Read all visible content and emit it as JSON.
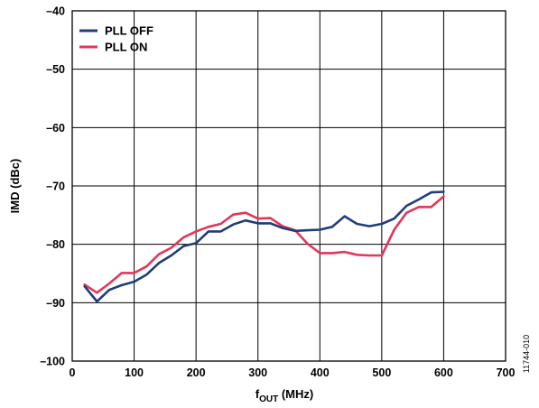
{
  "chart_data": {
    "type": "line",
    "xlabel": {
      "main": "f",
      "sub": "OUT",
      "rest": " (MHz)"
    },
    "ylabel": "IMD (dBc)",
    "xlim": [
      0,
      700
    ],
    "ylim": [
      -100,
      -40
    ],
    "x_ticks": [
      0,
      100,
      200,
      300,
      400,
      500,
      600,
      700
    ],
    "y_ticks": [
      -40,
      -50,
      -60,
      -70,
      -80,
      -90,
      -100
    ],
    "x_tick_labels": [
      "0",
      "100",
      "200",
      "300",
      "400",
      "500",
      "600",
      "700"
    ],
    "y_tick_labels": [
      "–40",
      "–50",
      "–60",
      "–70",
      "–80",
      "–90",
      "–100"
    ],
    "grid": true,
    "legend_position": "top-left",
    "series": [
      {
        "name": "PLL OFF",
        "color": "#1f3d7a",
        "points": [
          [
            20,
            -87.2
          ],
          [
            40,
            -89.8
          ],
          [
            60,
            -87.8
          ],
          [
            80,
            -87.0
          ],
          [
            100,
            -86.4
          ],
          [
            120,
            -85.2
          ],
          [
            140,
            -83.2
          ],
          [
            160,
            -81.9
          ],
          [
            180,
            -80.3
          ],
          [
            200,
            -79.8
          ],
          [
            220,
            -77.8
          ],
          [
            240,
            -77.8
          ],
          [
            260,
            -76.6
          ],
          [
            280,
            -75.9
          ],
          [
            300,
            -76.4
          ],
          [
            320,
            -76.4
          ],
          [
            340,
            -77.2
          ],
          [
            360,
            -77.7
          ],
          [
            380,
            -77.6
          ],
          [
            400,
            -77.5
          ],
          [
            420,
            -77.0
          ],
          [
            440,
            -75.2
          ],
          [
            460,
            -76.5
          ],
          [
            480,
            -76.9
          ],
          [
            500,
            -76.5
          ],
          [
            520,
            -75.6
          ],
          [
            540,
            -73.4
          ],
          [
            560,
            -72.3
          ],
          [
            580,
            -71.1
          ],
          [
            600,
            -71.0
          ]
        ]
      },
      {
        "name": "PLL ON",
        "color": "#e0375a",
        "points": [
          [
            20,
            -86.9
          ],
          [
            40,
            -88.3
          ],
          [
            60,
            -86.7
          ],
          [
            80,
            -84.9
          ],
          [
            100,
            -84.9
          ],
          [
            120,
            -83.8
          ],
          [
            140,
            -81.7
          ],
          [
            160,
            -80.6
          ],
          [
            180,
            -78.8
          ],
          [
            200,
            -77.8
          ],
          [
            220,
            -77.0
          ],
          [
            240,
            -76.5
          ],
          [
            260,
            -74.9
          ],
          [
            280,
            -74.6
          ],
          [
            300,
            -75.6
          ],
          [
            320,
            -75.5
          ],
          [
            340,
            -76.9
          ],
          [
            360,
            -77.6
          ],
          [
            380,
            -79.9
          ],
          [
            400,
            -81.5
          ],
          [
            420,
            -81.5
          ],
          [
            440,
            -81.3
          ],
          [
            460,
            -81.8
          ],
          [
            480,
            -81.9
          ],
          [
            500,
            -81.9
          ],
          [
            520,
            -77.5
          ],
          [
            540,
            -74.6
          ],
          [
            560,
            -73.6
          ],
          [
            580,
            -73.6
          ],
          [
            600,
            -71.8
          ]
        ]
      }
    ],
    "figure_id": "11744-010"
  }
}
